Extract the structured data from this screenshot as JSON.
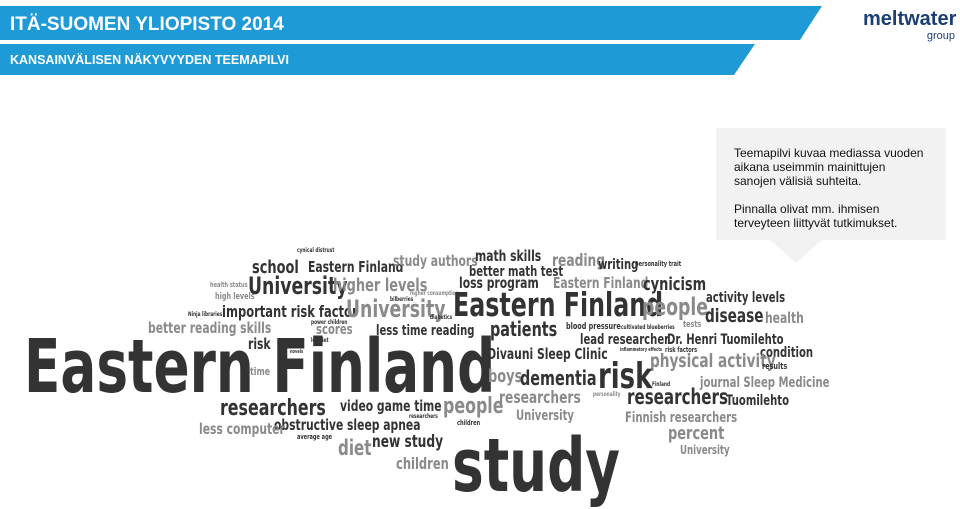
{
  "header": {
    "title": "ITÄ-SUOMEN YLIOPISTO 2014",
    "subtitle": "KANSAINVÄLISEN NÄKYVYYDEN TEEMAPILVI"
  },
  "logo": {
    "name": "meltwater",
    "sub": "group"
  },
  "callout": {
    "paragraphs": [
      [
        "Teemapilvi kuvaa mediassa vuoden",
        "aikana useimmin mainittujen",
        "sanojen välisiä suhteita."
      ],
      [
        "Pinnalla olivat mm. ihmisen",
        "terveyteen liittyvät tutkimukset."
      ]
    ]
  },
  "word_cloud": {
    "words": [
      "cynical distrust",
      "school",
      "Eastern Finland",
      "study authors",
      "math skills",
      "better math test",
      "reading",
      "writing",
      "personality trait",
      "health status",
      "University",
      "higher levels",
      "loss program",
      "Eastern Finland",
      "cynicism",
      "high levels",
      "higher consumption",
      "activity levels",
      "bilberries",
      "Eastern Finland",
      "people",
      "important risk factor",
      "University",
      "disease",
      "Ninja libraries",
      "diabetics",
      "health",
      "better reading skills",
      "scores",
      "less time reading",
      "patients",
      "blood pressure",
      "cultivated blueberries",
      "tests",
      "power children",
      "lot diet",
      "Eastern Finland",
      "risk",
      "lead researcher",
      "Dr. Henri Tuomilehto",
      "Oivauni Sleep Clinic",
      "inflammatory effects",
      "novels",
      "risk factors",
      "condition",
      "physical activity",
      "boys",
      "dementia",
      "risk",
      "time",
      "results",
      "journal Sleep Medicine",
      "personality",
      "Finland",
      "researchers",
      "video game time",
      "people",
      "researchers",
      "researchers",
      "Tuomilehto",
      "University",
      "Finnish researchers",
      "researchers",
      "obstructive sleep apnea",
      "children",
      "less computer",
      "average age",
      "study",
      "percent",
      "new study",
      "diet",
      "University",
      "children"
    ]
  }
}
